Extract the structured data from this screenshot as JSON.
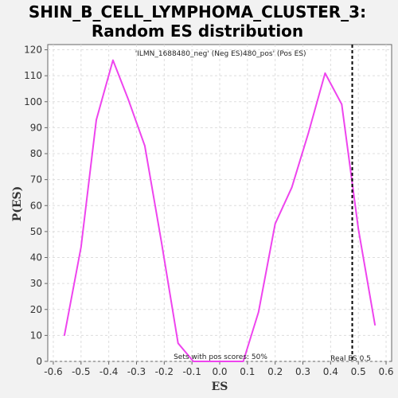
{
  "chart_data": {
    "type": "line",
    "title_line1": "SHIN_B_CELL_LYMPHOMA_CLUSTER_3:",
    "title_line2": "Random ES distribution",
    "xlabel": "ES",
    "ylabel": "P(ES)",
    "xlim": [
      -0.62,
      0.62
    ],
    "ylim": [
      0,
      122
    ],
    "x_ticks": [
      -0.6,
      -0.5,
      -0.4,
      -0.3,
      -0.2,
      -0.1,
      0.0,
      0.1,
      0.2,
      0.3,
      0.4,
      0.5,
      0.6
    ],
    "x_tick_labels": [
      "-0.6",
      "-0.5",
      "-0.4",
      "-0.3",
      "-0.2",
      "-0.1",
      "0.0",
      "0.1",
      "0.2",
      "0.3",
      "0.4",
      "0.5",
      "0.6"
    ],
    "y_ticks": [
      0,
      10,
      20,
      30,
      40,
      50,
      60,
      70,
      80,
      90,
      100,
      110,
      120
    ],
    "y_tick_labels": [
      "0",
      "10",
      "20",
      "30",
      "40",
      "50",
      "60",
      "70",
      "80",
      "90",
      "100",
      "110",
      "120"
    ],
    "grid": true,
    "series": [
      {
        "color": "#ee44ee",
        "x": [
          -0.56,
          -0.5,
          -0.445,
          -0.385,
          -0.33,
          -0.27,
          -0.21,
          -0.15,
          -0.095,
          -0.04,
          0.02,
          0.085,
          0.14,
          0.2,
          0.26,
          0.32,
          0.38,
          0.44,
          0.5,
          0.56
        ],
        "y": [
          10,
          44,
          93,
          116,
          101,
          83,
          46,
          7,
          0,
          0,
          0,
          0,
          19,
          53,
          67,
          88,
          111,
          99,
          51,
          14
        ]
      }
    ],
    "real_es": {
      "x": 0.478,
      "color": "#000000",
      "label": "Real ES 0.5"
    },
    "legend": {
      "placement": "top",
      "neg_label": "'ILMN_1688480_neg' (Neg ES)",
      "neg_color": "#2222dd",
      "pos_label": "480_pos' (Pos ES)",
      "pos_color": "#dd2222"
    },
    "annotation": "Sets with pos scores: 50%"
  }
}
